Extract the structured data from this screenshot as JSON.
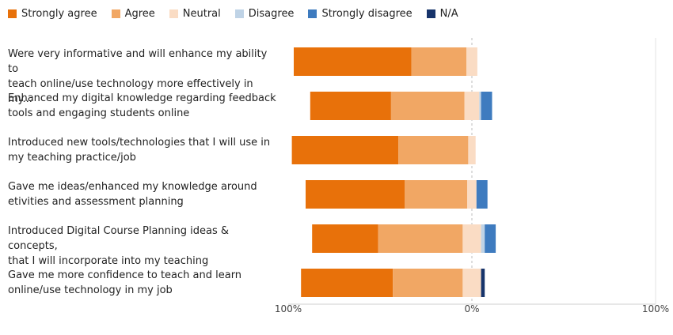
{
  "chart_data": {
    "type": "bar",
    "orientation": "horizontal",
    "stacked": "diverging",
    "legend_position": "top-left",
    "series": [
      {
        "name": "Strongly agree",
        "color": "#e8710a"
      },
      {
        "name": "Agree",
        "color": "#f1a764"
      },
      {
        "name": "Neutral",
        "color": "#fadcc4"
      },
      {
        "name": "Disagree",
        "color": "#bfd3e6"
      },
      {
        "name": "Strongly disagree",
        "color": "#3e7bbf"
      },
      {
        "name": "N/A",
        "color": "#17346b"
      }
    ],
    "categories": [
      "Were very informative and will enhance my ability to teach online/use technology more effectively in my...",
      "Enhanced my digital knowledge regarding feedback tools and engaging students online",
      "Introduced new tools/technologies that I will use in my teaching practice/job",
      "Gave me ideas/enhanced my knowledge around etivities and assessment planning",
      "Introduced Digital Course Planning ideas & concepts, that I will incorporate into my teaching",
      "Gave me more confidence to teach and learn online/use technology in my job"
    ],
    "label_lines": [
      [
        "Were very informative and will enhance my ability to",
        "teach online/use technology more effectively in my..."
      ],
      [
        "Enhanced my digital knowledge regarding feedback",
        "tools and engaging students online"
      ],
      [
        "Introduced new tools/technologies that I will use in",
        "my teaching practice/job"
      ],
      [
        "Gave me ideas/enhanced my knowledge around",
        "etivities and assessment planning"
      ],
      [
        "Introduced Digital Course Planning ideas & concepts,",
        "that I will incorporate into my teaching"
      ],
      [
        "Gave me more confidence to teach and learn",
        "online/use technology in my job"
      ]
    ],
    "values_percent": [
      {
        "Strongly agree": 64,
        "Agree": 30,
        "Neutral": 6,
        "Disagree": 0,
        "Strongly disagree": 0,
        "N/A": 0
      },
      {
        "Strongly agree": 44,
        "Agree": 40,
        "Neutral": 8,
        "Disagree": 1,
        "Strongly disagree": 6,
        "N/A": 0
      },
      {
        "Strongly agree": 58,
        "Agree": 38,
        "Neutral": 4,
        "Disagree": 0,
        "Strongly disagree": 0,
        "N/A": 0
      },
      {
        "Strongly agree": 54,
        "Agree": 34,
        "Neutral": 5,
        "Disagree": 0,
        "Strongly disagree": 6,
        "N/A": 0
      },
      {
        "Strongly agree": 36,
        "Agree": 46,
        "Neutral": 10,
        "Disagree": 2,
        "Strongly disagree": 6,
        "N/A": 0
      },
      {
        "Strongly agree": 50,
        "Agree": 38,
        "Neutral": 10,
        "Disagree": 0,
        "Strongly disagree": 0,
        "N/A": 2
      }
    ],
    "diverging_split": "Neutral",
    "axis_ticks": [
      "100%",
      "0%",
      "100%"
    ],
    "xlim": [
      -100,
      100
    ]
  }
}
